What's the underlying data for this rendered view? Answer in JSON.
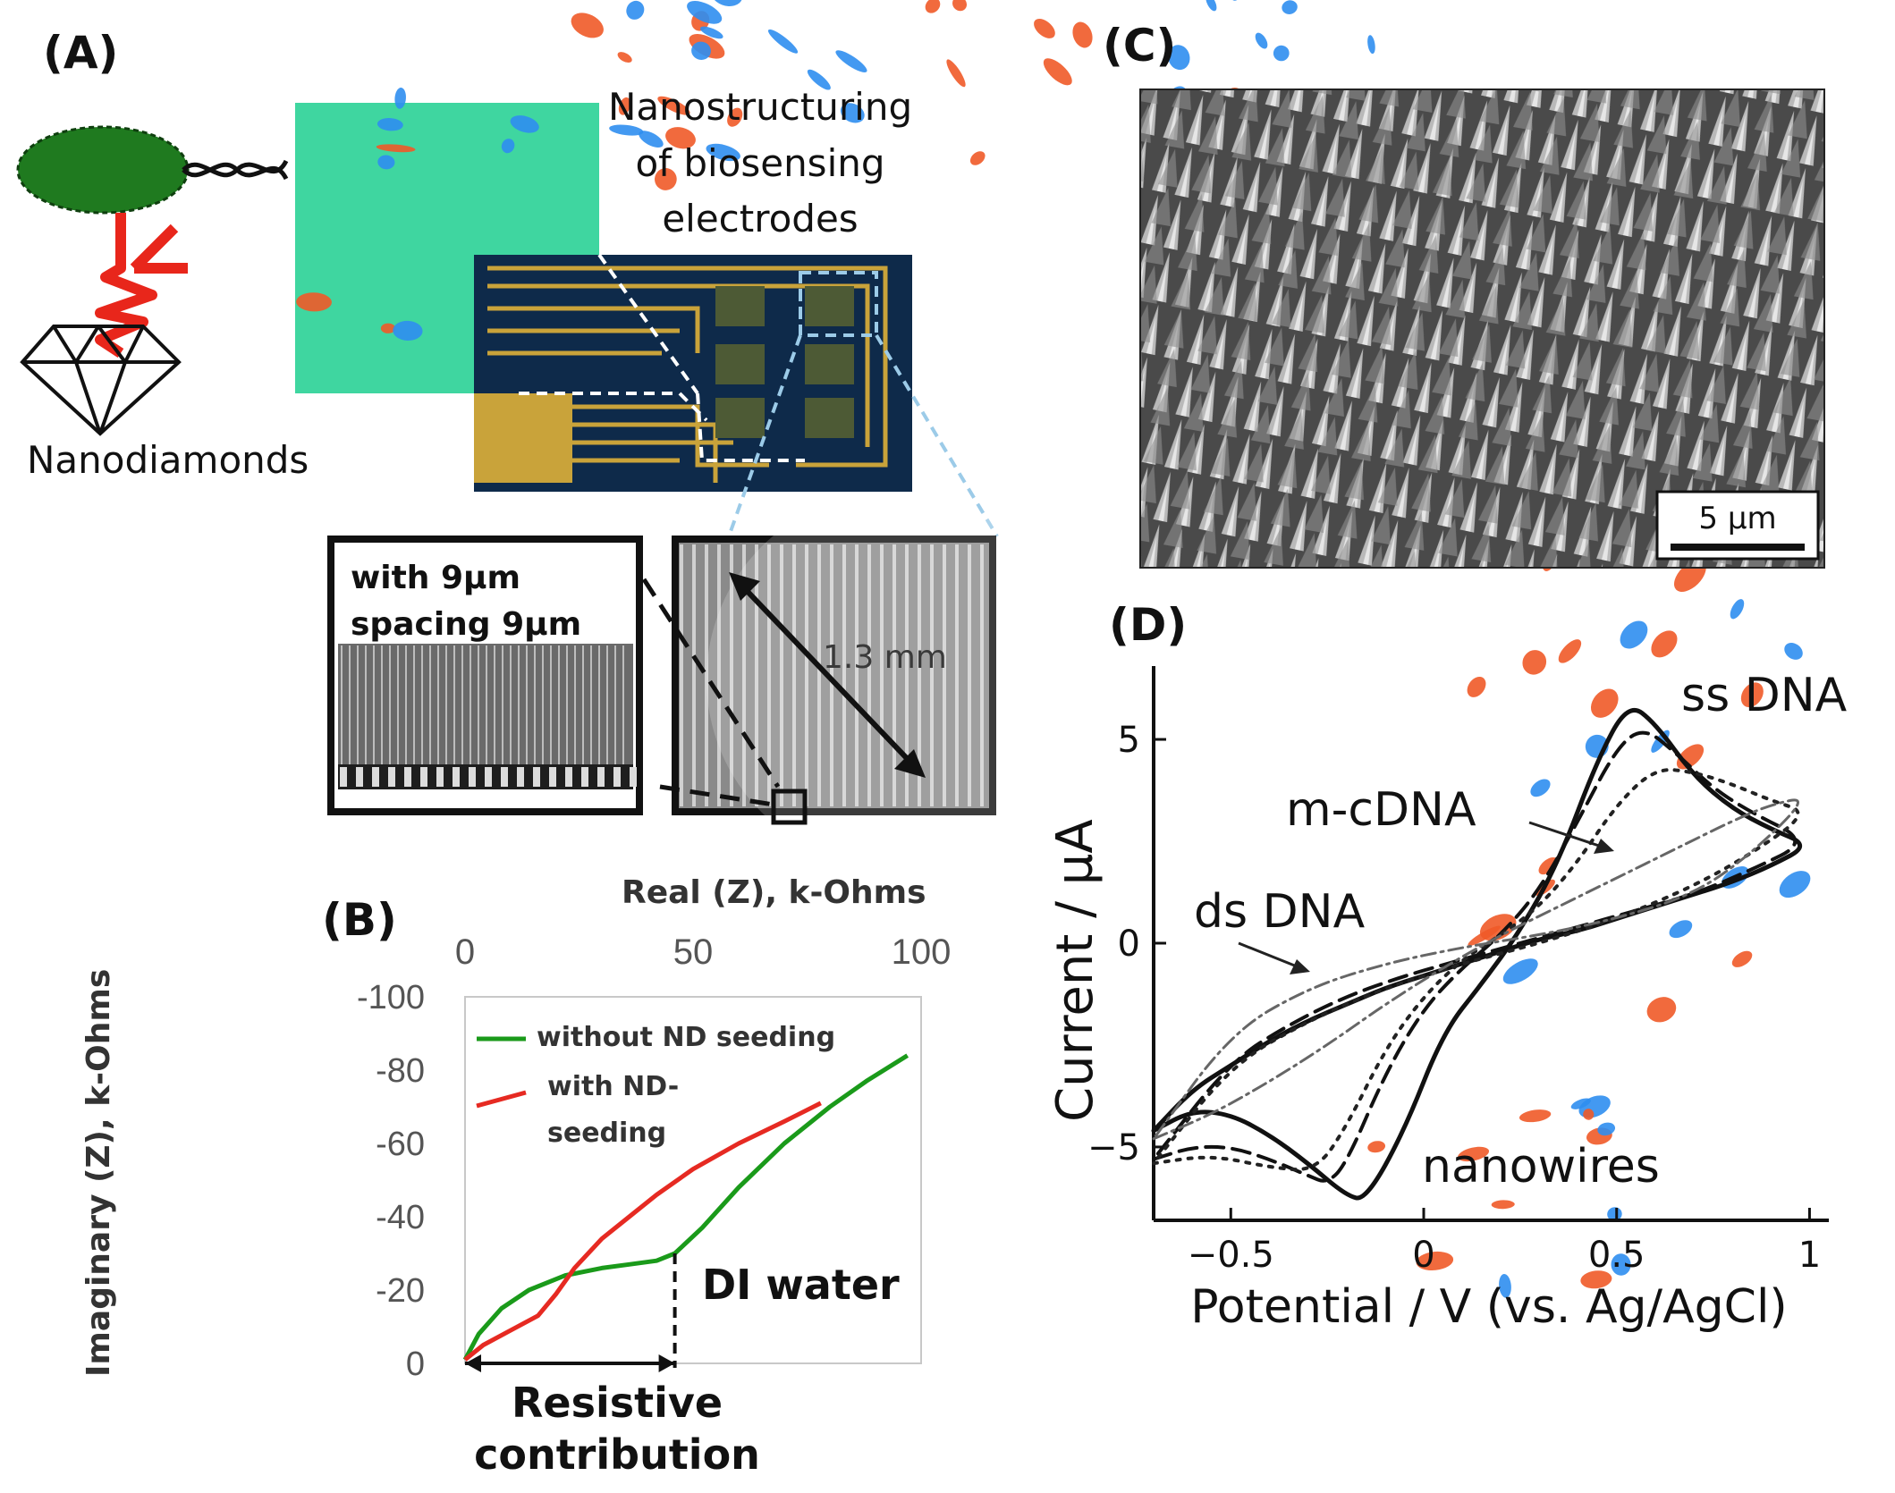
{
  "panels": {
    "a": {
      "letter": "(A)",
      "nanodiamonds_label": "Nanodiamonds",
      "nanostructuring_label": [
        "Nanostructuring",
        "of biosensing",
        "electrodes"
      ],
      "inset_left_text": [
        "with 9µm",
        "spacing 9µm"
      ],
      "inset_right_label": "1.3 mm",
      "colors": {
        "bacterium": "#1f7a1f",
        "antibody": "#e8261b",
        "heatmap_bg": "#3fd6a0",
        "heatmap_hot": "#f05a28",
        "heatmap_cold": "#2f8ef0",
        "chip_bg": "#0e2a4a",
        "gold": "#c9a33a"
      }
    },
    "b": {
      "letter": "(B)",
      "di_water_label": "DI water",
      "resistive_label": [
        "Resistive",
        "contribution"
      ],
      "legend": [
        {
          "line1": "without ND seeding",
          "line2": ""
        },
        {
          "line1": "with ND-",
          "line2": "seeding"
        }
      ]
    },
    "c": {
      "letter": "(C)",
      "scale_bar_label": "5 µm"
    },
    "d": {
      "letter": "(D)",
      "curve_labels": {
        "ss": "ss DNA",
        "mc": "m-cDNA",
        "ds": "ds DNA",
        "nw": "nanowires"
      }
    }
  },
  "chart_data": [
    {
      "type": "line",
      "panel": "B",
      "xlabel": "Real (Z), k-Ohms",
      "ylabel": "Imaginary (Z), k-Ohms",
      "xlim": [
        0,
        100
      ],
      "ylim": [
        0,
        -100
      ],
      "x_ticks": [
        "0",
        "50",
        "100"
      ],
      "y_ticks": [
        "-100",
        "-80",
        "-60",
        "-40",
        "-20",
        "0"
      ],
      "series": [
        {
          "name": "without ND seeding",
          "color": "#1a9a1a",
          "x": [
            0,
            3,
            8,
            14,
            22,
            30,
            36,
            42,
            46,
            52,
            60,
            70,
            80,
            88,
            97
          ],
          "y": [
            -1,
            -8,
            -15,
            -20,
            -24,
            -26,
            -27,
            -28,
            -30,
            -37,
            -48,
            -60,
            -70,
            -77,
            -84
          ]
        },
        {
          "name": "with ND-seeding",
          "color": "#e62a22",
          "x": [
            0,
            4,
            10,
            16,
            20,
            24,
            30,
            36,
            42,
            50,
            60,
            70,
            78
          ],
          "y": [
            -1,
            -5,
            -9,
            -13,
            -19,
            -26,
            -34,
            -40,
            -46,
            -53,
            -60,
            -66,
            -71
          ]
        }
      ]
    },
    {
      "type": "line",
      "panel": "D",
      "xlabel": "Potential / V (vs. Ag/AgCl)",
      "ylabel": "Current / µA",
      "xlim": [
        -0.7,
        1.05
      ],
      "ylim": [
        -6.8,
        6.8
      ],
      "x_ticks": [
        "-0.5",
        "0",
        "0.5",
        "1"
      ],
      "y_ticks": [
        "-5",
        "0",
        "5"
      ],
      "series": [
        {
          "name": "nanowires",
          "style": "solid",
          "x": [
            -0.7,
            -0.6,
            -0.5,
            -0.4,
            -0.3,
            -0.2,
            -0.15,
            -0.05,
            0.05,
            0.15,
            0.25,
            0.35,
            0.45,
            0.53,
            0.6,
            0.7,
            0.8,
            0.9,
            1.0,
            0.9,
            0.8,
            0.7,
            0.6,
            0.5,
            0.4,
            0.3,
            0.2,
            0.1,
            0.0,
            -0.1,
            -0.2,
            -0.3,
            -0.4,
            -0.5,
            -0.6,
            -0.7
          ],
          "y": [
            -4.6,
            -4.1,
            -4.2,
            -4.7,
            -5.4,
            -6.2,
            -6.3,
            -4.6,
            -2.2,
            -1.0,
            0.3,
            2.0,
            4.5,
            5.9,
            5.4,
            4.1,
            3.3,
            2.8,
            2.4,
            1.9,
            1.5,
            1.2,
            0.9,
            0.6,
            0.3,
            0.1,
            -0.2,
            -0.5,
            -0.8,
            -1.1,
            -1.5,
            -1.9,
            -2.4,
            -3.0,
            -3.6,
            -4.6
          ]
        },
        {
          "name": "ss DNA",
          "style": "dashed",
          "x": [
            -0.7,
            -0.6,
            -0.5,
            -0.4,
            -0.3,
            -0.25,
            -0.2,
            -0.1,
            0.0,
            0.1,
            0.2,
            0.3,
            0.4,
            0.5,
            0.57,
            0.65,
            0.75,
            0.85,
            1.0,
            0.85,
            0.7,
            0.55,
            0.4,
            0.25,
            0.1,
            -0.05,
            -0.2,
            -0.35,
            -0.5,
            -0.7
          ],
          "y": [
            -5.3,
            -5.0,
            -5.0,
            -5.3,
            -5.7,
            -5.9,
            -5.4,
            -3.2,
            -1.6,
            -0.6,
            0.2,
            1.3,
            3.0,
            4.8,
            5.3,
            4.7,
            3.8,
            3.2,
            2.5,
            1.8,
            1.2,
            0.8,
            0.4,
            0.0,
            -0.4,
            -0.8,
            -1.3,
            -2.0,
            -2.9,
            -5.3
          ]
        },
        {
          "name": "m-cDNA",
          "style": "dotted",
          "x": [
            -0.7,
            -0.55,
            -0.4,
            -0.28,
            -0.2,
            -0.1,
            0.0,
            0.1,
            0.2,
            0.3,
            0.4,
            0.5,
            0.6,
            0.7,
            0.8,
            0.9,
            1.0,
            0.85,
            0.7,
            0.5,
            0.3,
            0.1,
            -0.1,
            -0.3,
            -0.5,
            -0.7
          ],
          "y": [
            -5.4,
            -5.2,
            -5.5,
            -5.6,
            -4.5,
            -2.6,
            -1.3,
            -0.4,
            0.2,
            0.9,
            2.0,
            3.4,
            4.3,
            4.2,
            3.9,
            3.5,
            3.2,
            2.2,
            1.4,
            0.6,
            0.0,
            -0.5,
            -1.1,
            -1.9,
            -3.0,
            -5.4
          ]
        },
        {
          "name": "ds DNA",
          "style": "dashdot",
          "x": [
            -0.7,
            -0.55,
            -0.4,
            -0.25,
            -0.1,
            0.05,
            0.2,
            0.35,
            0.5,
            0.65,
            0.8,
            0.9,
            1.0,
            0.85,
            0.7,
            0.5,
            0.3,
            0.1,
            -0.1,
            -0.3,
            -0.5,
            -0.7
          ],
          "y": [
            -4.8,
            -4.2,
            -3.4,
            -2.5,
            -1.5,
            -0.6,
            0.2,
            0.9,
            1.6,
            2.3,
            3.0,
            3.4,
            3.6,
            2.2,
            1.2,
            0.6,
            0.2,
            -0.1,
            -0.5,
            -1.1,
            -2.2,
            -4.8
          ]
        }
      ]
    }
  ]
}
